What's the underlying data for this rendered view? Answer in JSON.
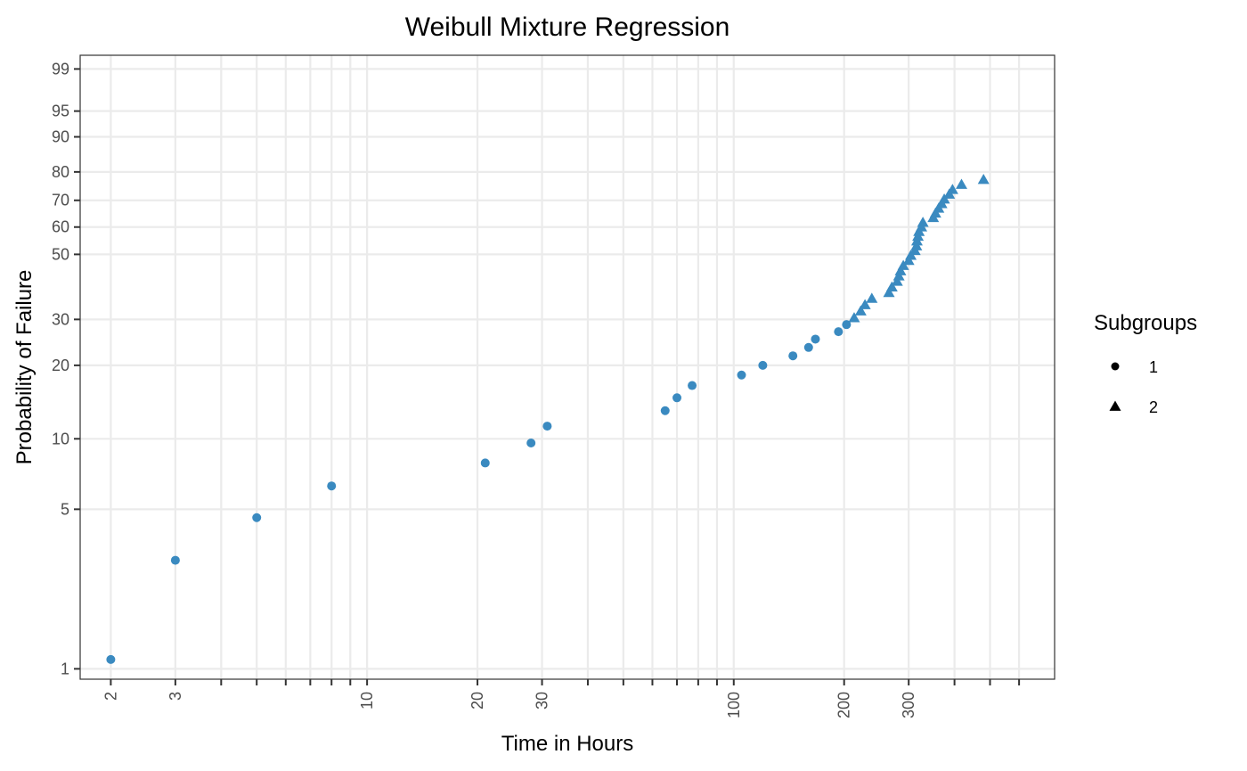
{
  "chart_data": {
    "type": "scatter",
    "title": "Weibull Mixture Regression",
    "xlabel": "Time in Hours",
    "ylabel": "Probability of Failure",
    "x_scale": "log10",
    "y_scale": "weibull-probability",
    "xlim": [
      1.65,
      750
    ],
    "ylim_percent": [
      0.9,
      99.5
    ],
    "x_ticks": [
      2,
      3,
      4,
      5,
      6,
      7,
      8,
      9,
      10,
      20,
      30,
      40,
      50,
      60,
      70,
      80,
      90,
      100,
      200,
      300,
      400,
      500,
      600
    ],
    "x_tick_labels": [
      {
        "value": 2,
        "label": "2"
      },
      {
        "value": 3,
        "label": "3"
      },
      {
        "value": 10,
        "label": "10"
      },
      {
        "value": 20,
        "label": "20"
      },
      {
        "value": 30,
        "label": "30"
      },
      {
        "value": 100,
        "label": "100"
      },
      {
        "value": 200,
        "label": "200"
      },
      {
        "value": 300,
        "label": "300"
      }
    ],
    "y_ticks": [
      {
        "value": 1,
        "label": "1"
      },
      {
        "value": 5,
        "label": "5"
      },
      {
        "value": 10,
        "label": "10"
      },
      {
        "value": 20,
        "label": "20"
      },
      {
        "value": 30,
        "label": "30"
      },
      {
        "value": 50,
        "label": "50"
      },
      {
        "value": 60,
        "label": "60"
      },
      {
        "value": 70,
        "label": "70"
      },
      {
        "value": 80,
        "label": "80"
      },
      {
        "value": 90,
        "label": "90"
      },
      {
        "value": 95,
        "label": "95"
      },
      {
        "value": 99,
        "label": "99"
      }
    ],
    "grid": true,
    "legend": {
      "title": "Subgroups",
      "position": "right"
    },
    "color": "#3a8ac0",
    "series": [
      {
        "name": "1",
        "shape": "circle",
        "points": [
          {
            "x": 2.0,
            "y": 1.1
          },
          {
            "x": 3.0,
            "y": 3.0
          },
          {
            "x": 5.0,
            "y": 4.6
          },
          {
            "x": 8.0,
            "y": 6.3
          },
          {
            "x": 21,
            "y": 7.9
          },
          {
            "x": 28,
            "y": 9.6
          },
          {
            "x": 31,
            "y": 11.3
          },
          {
            "x": 65,
            "y": 13.1
          },
          {
            "x": 70,
            "y": 14.8
          },
          {
            "x": 77,
            "y": 16.6
          },
          {
            "x": 105,
            "y": 18.3
          },
          {
            "x": 120,
            "y": 20.0
          },
          {
            "x": 145,
            "y": 21.8
          },
          {
            "x": 160,
            "y": 23.5
          },
          {
            "x": 167,
            "y": 25.3
          },
          {
            "x": 193,
            "y": 27.0
          },
          {
            "x": 203,
            "y": 28.7
          }
        ]
      },
      {
        "name": "2",
        "shape": "triangle",
        "points": [
          {
            "x": 213,
            "y": 30.4
          },
          {
            "x": 222,
            "y": 32.2
          },
          {
            "x": 228,
            "y": 33.9
          },
          {
            "x": 238,
            "y": 35.7
          },
          {
            "x": 265,
            "y": 37.4
          },
          {
            "x": 270,
            "y": 39.1
          },
          {
            "x": 279,
            "y": 40.9
          },
          {
            "x": 282,
            "y": 42.6
          },
          {
            "x": 285,
            "y": 44.3
          },
          {
            "x": 290,
            "y": 46.1
          },
          {
            "x": 300,
            "y": 47.8
          },
          {
            "x": 304,
            "y": 49.6
          },
          {
            "x": 312,
            "y": 51.3
          },
          {
            "x": 315,
            "y": 53.0
          },
          {
            "x": 316,
            "y": 54.8
          },
          {
            "x": 318,
            "y": 56.5
          },
          {
            "x": 320,
            "y": 58.3
          },
          {
            "x": 325,
            "y": 60.0
          },
          {
            "x": 328,
            "y": 61.7
          },
          {
            "x": 350,
            "y": 63.5
          },
          {
            "x": 355,
            "y": 65.2
          },
          {
            "x": 362,
            "y": 67.0
          },
          {
            "x": 369,
            "y": 68.7
          },
          {
            "x": 375,
            "y": 70.4
          },
          {
            "x": 387,
            "y": 72.2
          },
          {
            "x": 395,
            "y": 73.9
          },
          {
            "x": 418,
            "y": 75.7
          },
          {
            "x": 480,
            "y": 77.4
          }
        ]
      }
    ]
  }
}
